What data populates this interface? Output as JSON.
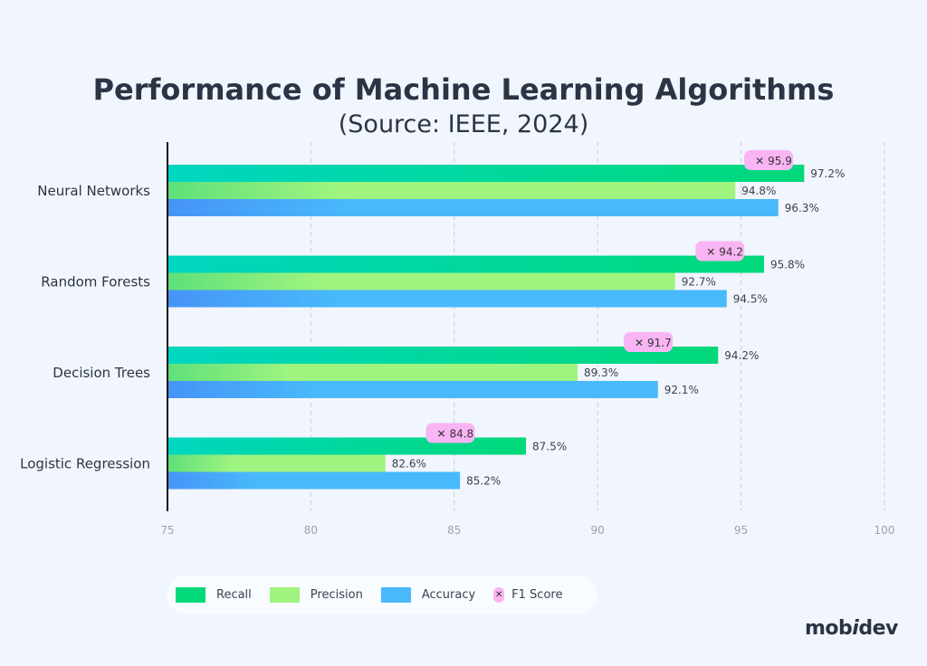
{
  "chart_data": {
    "type": "bar",
    "orientation": "horizontal",
    "title": "Performance of Machine Learning Algorithms",
    "subtitle": "(Source: IEEE, 2024)",
    "categories": [
      "Neural Networks",
      "Random Forests",
      "Decision Trees",
      "Logistic Regression"
    ],
    "series": [
      {
        "name": "Recall",
        "values": [
          97.2,
          95.8,
          94.2,
          87.5
        ],
        "color": "#00d87a",
        "labels": [
          "97.2%",
          "95.8%",
          "94.2%",
          "87.5%"
        ]
      },
      {
        "name": "Precision",
        "values": [
          94.8,
          92.7,
          89.3,
          82.6
        ],
        "color": "#9ff47f",
        "labels": [
          "94.8%",
          "92.7%",
          "89.3%",
          "82.6%"
        ]
      },
      {
        "name": "Accuracy",
        "values": [
          96.3,
          94.5,
          92.1,
          85.2
        ],
        "color": "#48b9fb",
        "labels": [
          "96.3%",
          "94.5%",
          "92.1%",
          "85.2%"
        ]
      },
      {
        "name": "F1 Score",
        "values": [
          95.9,
          94.2,
          91.7,
          84.8
        ],
        "color": "#f9b4f4",
        "marker": "x",
        "labels": [
          "95.9",
          "94.2",
          "91.7",
          "84.8"
        ]
      }
    ],
    "xlim": [
      75,
      100
    ],
    "xticks": [
      "75",
      "80",
      "85",
      "90",
      "95",
      "100"
    ],
    "grid": "vertical dashed",
    "legend": "bottom"
  },
  "logo": "mobidev"
}
